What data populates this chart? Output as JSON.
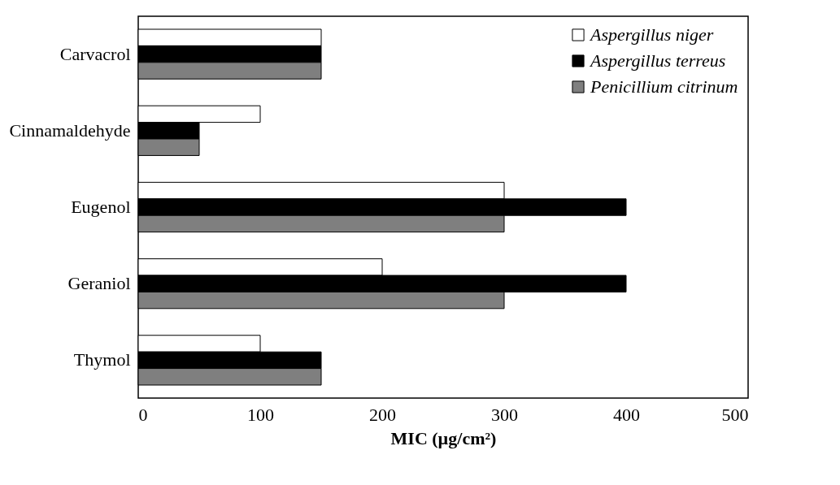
{
  "chart_data": {
    "type": "bar",
    "orientation": "horizontal",
    "xlabel": "MIC (µg/cm²)",
    "categories": [
      "Carvacrol",
      "Cinnamaldehyde",
      "Eugenol",
      "Geraniol",
      "Thymol"
    ],
    "series": [
      {
        "name": "Aspergillus niger",
        "color": "#ffffff",
        "values": [
          150,
          100,
          300,
          200,
          100
        ]
      },
      {
        "name": "Aspergillus terreus",
        "color": "#000000",
        "values": [
          150,
          50,
          400,
          400,
          150
        ]
      },
      {
        "name": "Penicillium citrinum",
        "color": "#7f7f7f",
        "values": [
          150,
          50,
          300,
          300,
          150
        ]
      }
    ],
    "xlim": [
      0,
      500
    ],
    "xticks": [
      0,
      100,
      200,
      300,
      400,
      500
    ],
    "grid": false,
    "legend": "top right"
  }
}
